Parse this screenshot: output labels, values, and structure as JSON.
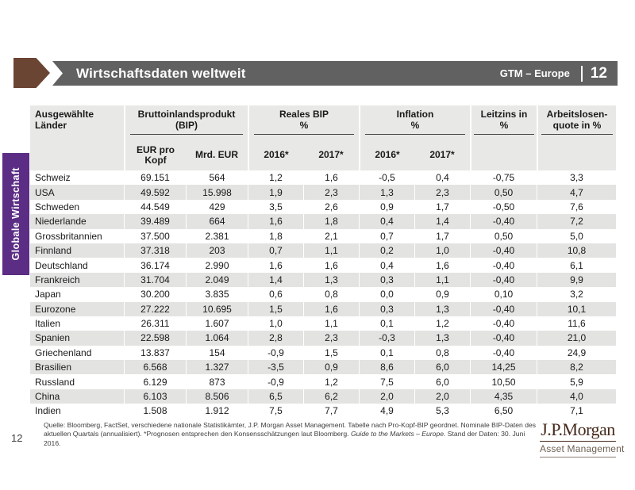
{
  "slide": {
    "title": "Wirtschaftsdaten weltweit",
    "gtm_label": "GTM – Europe",
    "gtm_page": "12",
    "section_tab": "Globale Wirtschaft",
    "page_number": "12"
  },
  "colors": {
    "banner_gray": "#616161",
    "arrow_brown": "#6b4533",
    "tab_purple": "#5b2d85",
    "header_bg": "#e8e8e6",
    "row_stripe": "#e3e3e2",
    "logo_brown": "#45291c"
  },
  "table": {
    "groups": [
      {
        "line1": "Ausgewählte",
        "line2": "Länder",
        "underline": false
      },
      {
        "line1": "Bruttoinlandsprodukt",
        "line2": "(BIP)",
        "underline": true
      },
      {
        "line1": "Reales BIP",
        "line2": "%",
        "underline": true
      },
      {
        "line1": "Inflation",
        "line2": "%",
        "underline": true
      },
      {
        "line1": "Leitzins in",
        "line2": "%",
        "underline": true
      },
      {
        "line1": "Arbeitslosen-",
        "line2": "quote in %",
        "underline": true
      }
    ],
    "sub_headers": [
      "",
      "EUR pro Kopf",
      "Mrd. EUR",
      "2016*",
      "2017*",
      "2016*",
      "2017*",
      "",
      ""
    ],
    "rows": [
      [
        "Schweiz",
        "69.151",
        "564",
        "1,2",
        "1,6",
        "-0,5",
        "0,4",
        "-0,75",
        "3,3"
      ],
      [
        "USA",
        "49.592",
        "15.998",
        "1,9",
        "2,3",
        "1,3",
        "2,3",
        "0,50",
        "4,7"
      ],
      [
        "Schweden",
        "44.549",
        "429",
        "3,5",
        "2,6",
        "0,9",
        "1,7",
        "-0,50",
        "7,6"
      ],
      [
        "Niederlande",
        "39.489",
        "664",
        "1,6",
        "1,8",
        "0,4",
        "1,4",
        "-0,40",
        "7,2"
      ],
      [
        "Grossbritannien",
        "37.500",
        "2.381",
        "1,8",
        "2,1",
        "0,7",
        "1,7",
        "0,50",
        "5,0"
      ],
      [
        "Finnland",
        "37.318",
        "203",
        "0,7",
        "1,1",
        "0,2",
        "1,0",
        "-0,40",
        "10,8"
      ],
      [
        "Deutschland",
        "36.174",
        "2.990",
        "1,6",
        "1,6",
        "0,4",
        "1,6",
        "-0,40",
        "6,1"
      ],
      [
        "Frankreich",
        "31.704",
        "2.049",
        "1,4",
        "1,3",
        "0,3",
        "1,1",
        "-0,40",
        "9,9"
      ],
      [
        "Japan",
        "30.200",
        "3.835",
        "0,6",
        "0,8",
        "0,0",
        "0,9",
        "0,10",
        "3,2"
      ],
      [
        "Eurozone",
        "27.222",
        "10.695",
        "1,5",
        "1,6",
        "0,3",
        "1,3",
        "-0,40",
        "10,1"
      ],
      [
        "Italien",
        "26.311",
        "1.607",
        "1,0",
        "1,1",
        "0,1",
        "1,2",
        "-0,40",
        "11,6"
      ],
      [
        "Spanien",
        "22.598",
        "1.064",
        "2,8",
        "2,3",
        "-0,3",
        "1,3",
        "-0,40",
        "21,0"
      ],
      [
        "Griechenland",
        "13.837",
        "154",
        "-0,9",
        "1,5",
        "0,1",
        "0,8",
        "-0,40",
        "24,9"
      ],
      [
        "Brasilien",
        "6.568",
        "1.327",
        "-3,5",
        "0,9",
        "8,6",
        "6,0",
        "14,25",
        "8,2"
      ],
      [
        "Russland",
        "6.129",
        "873",
        "-0,9",
        "1,2",
        "7,5",
        "6,0",
        "10,50",
        "5,9"
      ],
      [
        "China",
        "6.103",
        "8.506",
        "6,5",
        "6,2",
        "2,0",
        "2,0",
        "4,35",
        "4,0"
      ],
      [
        "Indien",
        "1.508",
        "1.912",
        "7,5",
        "7,7",
        "4,9",
        "5,3",
        "6,50",
        "7,1"
      ]
    ]
  },
  "footnote": {
    "pre": "Quelle: Bloomberg, FactSet, verschiedene nationale Statistikämter, J.P. Morgan Asset Management. Tabelle nach Pro-Kopf-BIP geordnet. Nominale BIP-Daten des aktuellen Quartals (annualisiert). *Prognosen entsprechen den Konsensschätzungen laut Bloomberg. ",
    "italic": "Guide to the Markets – Europe.",
    "post": " Stand der Daten: 30. Juni 2016."
  },
  "logo": {
    "name": "J.P.Morgan",
    "sub": "Asset Management"
  }
}
